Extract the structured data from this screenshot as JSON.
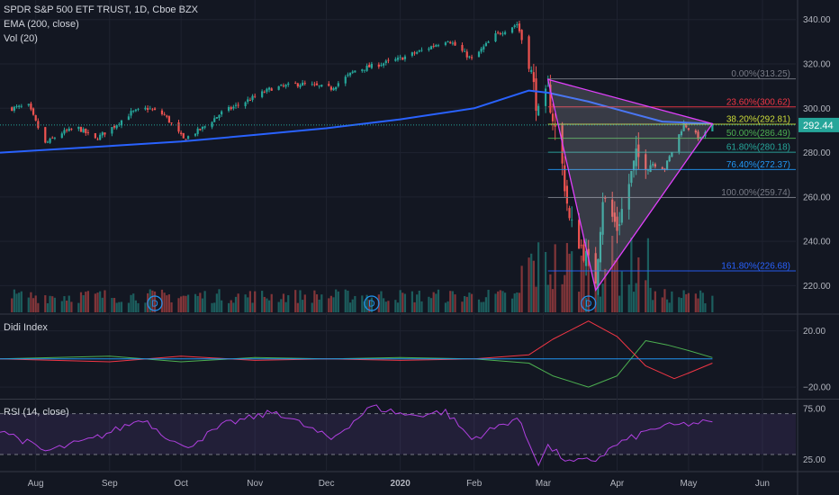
{
  "header": {
    "title": "SPDR S&P 500 ETF TRUST, 1D, Cboe BZX",
    "ema": "EMA (200, close)",
    "vol": "Vol (20)"
  },
  "pane_labels": {
    "didi": "Didi Index",
    "rsi": "RSI (14, close)"
  },
  "last_price": "292.44",
  "colors": {
    "background": "#131722",
    "up": "#26a69a",
    "down": "#ef5350",
    "ema": "#2962ff",
    "pattern": "#e040fb",
    "rsi": "#b040e0",
    "didi_green": "#4caf50",
    "didi_red": "#f23645",
    "didi_blue": "#2196f3"
  },
  "chart_data": [
    {
      "type": "candlestick",
      "pane": "price",
      "y_axis": {
        "ticks": [
          220,
          240,
          260,
          280,
          300,
          320,
          340
        ],
        "range": [
          208,
          348
        ]
      },
      "x_axis": {
        "ticks": [
          "Aug",
          "Sep",
          "Oct",
          "Nov",
          "Dec",
          "2020",
          "Feb",
          "Mar",
          "Apr",
          "May",
          "Jun"
        ]
      },
      "last_price": 292.44,
      "price_path": [
        {
          "x": "Jul 22",
          "price": 300
        },
        {
          "x": "Jul 29",
          "price": 301
        },
        {
          "x": "Aug 5",
          "price": 284
        },
        {
          "x": "Aug 12",
          "price": 289
        },
        {
          "x": "Aug 19",
          "price": 291
        },
        {
          "x": "Aug 26",
          "price": 286
        },
        {
          "x": "Sep 3",
          "price": 292
        },
        {
          "x": "Sep 10",
          "price": 298
        },
        {
          "x": "Sep 17",
          "price": 300
        },
        {
          "x": "Sep 24",
          "price": 297
        },
        {
          "x": "Oct 2",
          "price": 286
        },
        {
          "x": "Oct 10",
          "price": 291
        },
        {
          "x": "Oct 18",
          "price": 298
        },
        {
          "x": "Oct 28",
          "price": 303
        },
        {
          "x": "Nov 8",
          "price": 309
        },
        {
          "x": "Nov 20",
          "price": 311
        },
        {
          "x": "Dec 3",
          "price": 309
        },
        {
          "x": "Dec 13",
          "price": 317
        },
        {
          "x": "Dec 31",
          "price": 322
        },
        {
          "x": "Jan 10",
          "price": 326
        },
        {
          "x": "Jan 21",
          "price": 331
        },
        {
          "x": "Jan 31",
          "price": 322
        },
        {
          "x": "Feb 10",
          "price": 333
        },
        {
          "x": "Feb 19",
          "price": 338
        },
        {
          "x": "Feb 24",
          "price": 322
        },
        {
          "x": "Feb 28",
          "price": 297
        },
        {
          "x": "Mar 3",
          "price": 307
        },
        {
          "x": "Mar 9",
          "price": 274
        },
        {
          "x": "Mar 12",
          "price": 249
        },
        {
          "x": "Mar 16",
          "price": 240
        },
        {
          "x": "Mar 23",
          "price": 223
        },
        {
          "x": "Mar 26",
          "price": 260
        },
        {
          "x": "Apr 1",
          "price": 246
        },
        {
          "x": "Apr 9",
          "price": 278
        },
        {
          "x": "Apr 21",
          "price": 273
        },
        {
          "x": "Apr 29",
          "price": 293
        },
        {
          "x": "May 6",
          "price": 286
        },
        {
          "x": "May 11",
          "price": 292.44
        }
      ],
      "ema_200": [
        {
          "x": "Jul 17",
          "value": 280
        },
        {
          "x": "Sep 1",
          "value": 283
        },
        {
          "x": "Oct 1",
          "value": 285
        },
        {
          "x": "Nov 1",
          "value": 288
        },
        {
          "x": "Dec 1",
          "value": 291
        },
        {
          "x": "Jan 1",
          "value": 295
        },
        {
          "x": "Feb 1",
          "value": 300
        },
        {
          "x": "Feb 24",
          "value": 308
        },
        {
          "x": "Mar 3",
          "value": 307
        },
        {
          "x": "Mar 20",
          "value": 303
        },
        {
          "x": "Apr 6",
          "value": 298
        },
        {
          "x": "Apr 20",
          "value": 294
        },
        {
          "x": "May 11",
          "value": 293
        }
      ],
      "fibonacci": [
        {
          "label": "0.00%(313.25)",
          "value": 313.25,
          "color": "#787b86"
        },
        {
          "label": "23.60%(300.62)",
          "value": 300.62,
          "color": "#f23645"
        },
        {
          "label": "38.20%(292.81)",
          "value": 292.81,
          "color": "#cddc39"
        },
        {
          "label": "50.00%(286.49)",
          "value": 286.49,
          "color": "#4caf50"
        },
        {
          "label": "61.80%(280.18)",
          "value": 280.18,
          "color": "#26a69a"
        },
        {
          "label": "76.40%(272.37)",
          "value": 272.37,
          "color": "#2196f3"
        },
        {
          "label": "100.00%(259.74)",
          "value": 259.74,
          "color": "#787b86"
        },
        {
          "label": "161.80%(226.68)",
          "value": 226.68,
          "color": "#2962ff"
        }
      ],
      "triangle_pattern": [
        {
          "x": "Mar 3",
          "price": 313
        },
        {
          "x": "May 11",
          "price": 293
        },
        {
          "x": "Mar 23",
          "price": 218
        }
      ],
      "event_markers": [
        {
          "x": "Sep 20",
          "label": "D"
        },
        {
          "x": "Dec 20",
          "label": "D"
        },
        {
          "x": "Mar 20",
          "label": "D"
        }
      ]
    },
    {
      "type": "line",
      "pane": "didi",
      "y_axis": {
        "ticks": [
          20,
          -20
        ],
        "tick_labels": [
          "20.00",
          "−20.00"
        ],
        "range": [
          -27,
          30
        ]
      },
      "series": [
        {
          "color": "#4caf50",
          "points": [
            {
              "x": "Jul 17",
              "y": 0
            },
            {
              "x": "Sep 1",
              "y": 2
            },
            {
              "x": "Oct 1",
              "y": -2
            },
            {
              "x": "Nov 1",
              "y": 1
            },
            {
              "x": "Dec 1",
              "y": 0
            },
            {
              "x": "Jan 1",
              "y": 1
            },
            {
              "x": "Feb 1",
              "y": 0
            },
            {
              "x": "Feb 24",
              "y": -3
            },
            {
              "x": "Mar 5",
              "y": -12
            },
            {
              "x": "Mar 20",
              "y": -20
            },
            {
              "x": "Apr 1",
              "y": -12
            },
            {
              "x": "Apr 13",
              "y": 13
            },
            {
              "x": "Apr 22",
              "y": 10
            },
            {
              "x": "May 1",
              "y": 6
            },
            {
              "x": "May 11",
              "y": 1
            }
          ]
        },
        {
          "color": "#f23645",
          "points": [
            {
              "x": "Jul 17",
              "y": 0
            },
            {
              "x": "Sep 1",
              "y": -2
            },
            {
              "x": "Oct 1",
              "y": 2
            },
            {
              "x": "Nov 1",
              "y": -1
            },
            {
              "x": "Dec 1",
              "y": 0
            },
            {
              "x": "Jan 1",
              "y": -1
            },
            {
              "x": "Feb 1",
              "y": 0
            },
            {
              "x": "Feb 24",
              "y": 3
            },
            {
              "x": "Mar 5",
              "y": 14
            },
            {
              "x": "Mar 20",
              "y": 27
            },
            {
              "x": "Apr 1",
              "y": 16
            },
            {
              "x": "Apr 13",
              "y": -5
            },
            {
              "x": "Apr 25",
              "y": -14
            },
            {
              "x": "May 1",
              "y": -10
            },
            {
              "x": "May 11",
              "y": -3
            }
          ]
        },
        {
          "color": "#2196f3",
          "points": [
            {
              "x": "Jul 17",
              "y": 0
            },
            {
              "x": "May 11",
              "y": 0
            }
          ]
        }
      ]
    },
    {
      "type": "line",
      "pane": "rsi",
      "y_axis": {
        "ticks": [
          75,
          25
        ],
        "tick_labels": [
          "75.00",
          "25.00"
        ],
        "range": [
          15,
          82
        ],
        "band": [
          30,
          70
        ]
      },
      "series": [
        {
          "color": "#b040e0",
          "points": [
            {
              "x": "Jul 17",
              "y": 55
            },
            {
              "x": "Aug 5",
              "y": 33
            },
            {
              "x": "Aug 25",
              "y": 45
            },
            {
              "x": "Sep 15",
              "y": 65
            },
            {
              "x": "Oct 2",
              "y": 36
            },
            {
              "x": "Oct 20",
              "y": 60
            },
            {
              "x": "Nov 10",
              "y": 72
            },
            {
              "x": "Dec 3",
              "y": 45
            },
            {
              "x": "Dec 20",
              "y": 77
            },
            {
              "x": "Jan 5",
              "y": 68
            },
            {
              "x": "Jan 20",
              "y": 72
            },
            {
              "x": "Jan 31",
              "y": 45
            },
            {
              "x": "Feb 19",
              "y": 66
            },
            {
              "x": "Feb 28",
              "y": 22
            },
            {
              "x": "Mar 3",
              "y": 38
            },
            {
              "x": "Mar 12",
              "y": 22
            },
            {
              "x": "Mar 23",
              "y": 25
            },
            {
              "x": "Apr 1",
              "y": 40
            },
            {
              "x": "Apr 17",
              "y": 56
            },
            {
              "x": "May 1",
              "y": 60
            },
            {
              "x": "May 11",
              "y": 62
            }
          ]
        }
      ]
    }
  ]
}
